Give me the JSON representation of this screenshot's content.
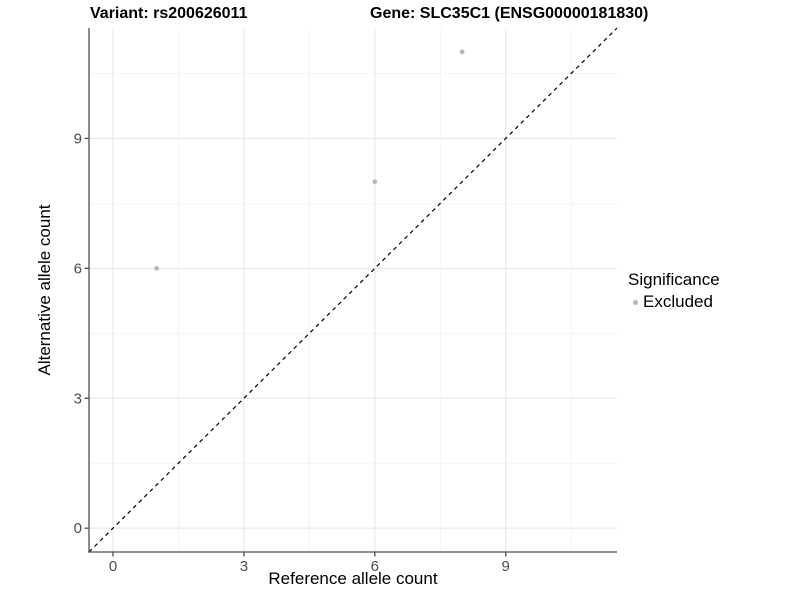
{
  "chart_data": {
    "type": "scatter",
    "titles": {
      "left": "Variant: rs200626011",
      "right": "Gene: SLC35C1 (ENSG00000181830)"
    },
    "xlabel": "Reference allele count",
    "ylabel": "Alternative allele count",
    "xlim": [
      -0.55,
      11.55
    ],
    "ylim": [
      -0.55,
      11.55
    ],
    "xticks": [
      0,
      3,
      6,
      9
    ],
    "yticks": [
      0,
      3,
      6,
      9
    ],
    "xminor": [
      1.5,
      4.5,
      7.5,
      10.5
    ],
    "yminor": [
      1.5,
      4.5,
      7.5,
      10.5
    ],
    "grid": true,
    "series": [
      {
        "name": "Excluded",
        "color": "#b9b9b9",
        "points": [
          {
            "x": 1,
            "y": 6
          },
          {
            "x": 6,
            "y": 8
          },
          {
            "x": 8,
            "y": 11
          }
        ]
      }
    ],
    "reference_line": {
      "type": "identity",
      "style": "dashed",
      "color": "#000000"
    },
    "legend": {
      "title": "Significance",
      "position": "right",
      "items": [
        {
          "label": "Excluded",
          "color": "#b9b9b9"
        }
      ]
    },
    "colors": {
      "background": "#ffffff",
      "grid_major": "#e9e9e9",
      "grid_minor": "#f2f2f2",
      "axis": "#4d4d4d",
      "tick_label": "#4d4d4d"
    }
  }
}
